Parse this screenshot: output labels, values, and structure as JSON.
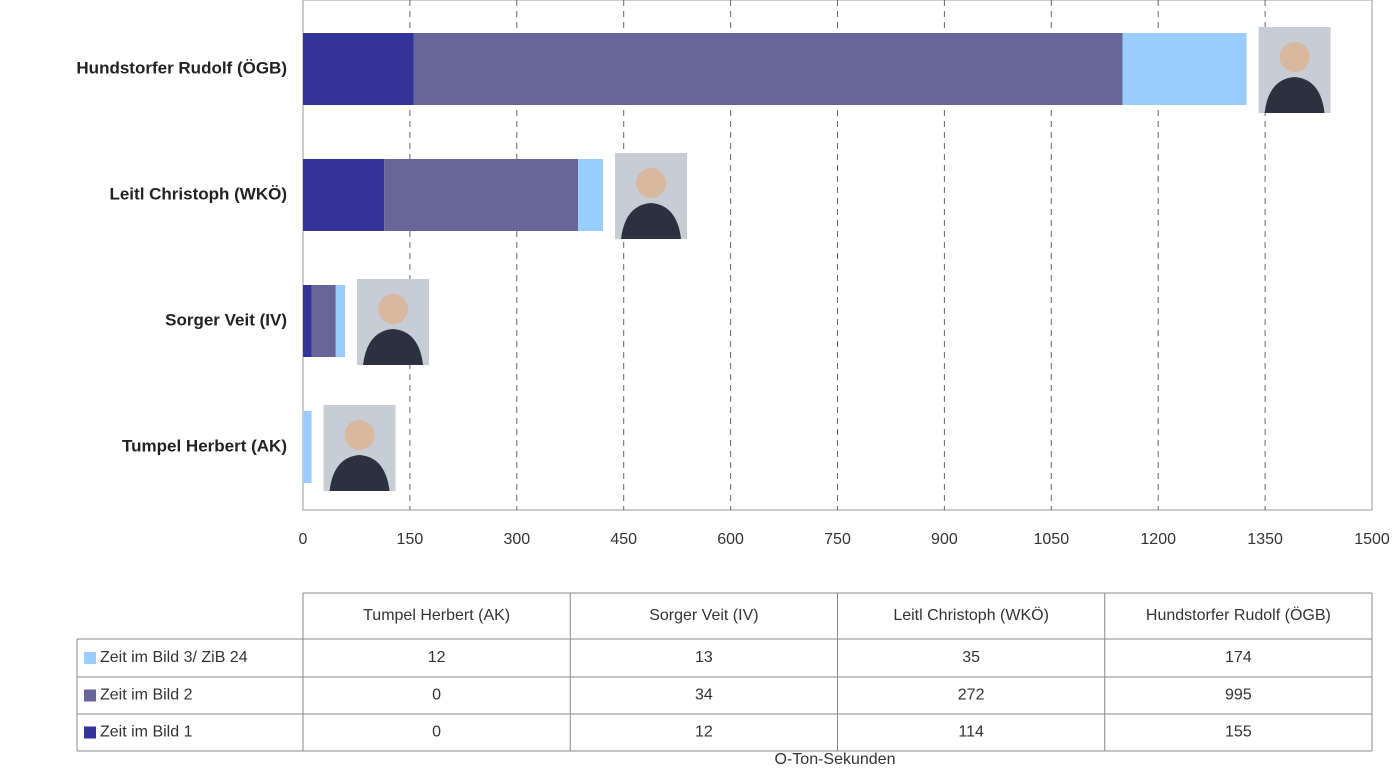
{
  "chart_data": {
    "type": "stacked-barh",
    "x_label": "O-Ton-Sekunden",
    "categories": [
      "Tumpel Herbert (AK)",
      "Sorger Veit (IV)",
      "Leitl Christoph (WKÖ)",
      "Hundstorfer Rudolf (ÖGB)"
    ],
    "series": [
      {
        "name": "Zeit im Bild 1",
        "color": "#333399",
        "values": [
          0,
          12,
          114,
          155
        ]
      },
      {
        "name": "Zeit im Bild 2",
        "color": "#666699",
        "values": [
          0,
          34,
          272,
          995
        ]
      },
      {
        "name": "Zeit im Bild 3/ ZiB 24",
        "color": "#99ccff",
        "values": [
          12,
          13,
          35,
          174
        ]
      }
    ],
    "xlim": [
      0,
      1500
    ],
    "xticks": [
      0,
      150,
      300,
      450,
      600,
      750,
      900,
      1050,
      1200,
      1350,
      1500
    ],
    "grid": true
  }
}
